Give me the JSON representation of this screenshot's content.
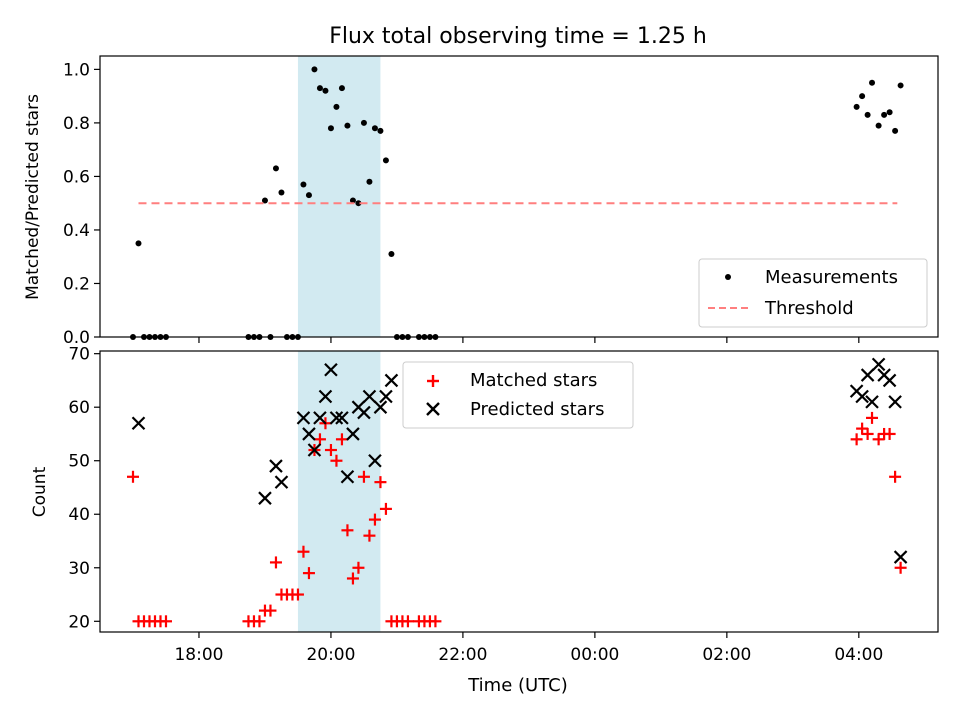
{
  "title": "Flux total observing time = 1.25 h",
  "xlabel": "Time (UTC)",
  "x_ticks": [
    "18:00",
    "20:00",
    "22:00",
    "00:00",
    "02:00",
    "04:00"
  ],
  "highlight": {
    "start": "19:30",
    "end": "20:45",
    "color": "#add8e6"
  },
  "chart_data": [
    {
      "type": "scatter",
      "ylabel": "Matched/Predicted stars",
      "xlim": [
        "16:30",
        "05:12"
      ],
      "ylim": [
        0,
        1.05
      ],
      "y_ticks": [
        "0.0",
        "0.2",
        "0.4",
        "0.6",
        "0.8",
        "1.0"
      ],
      "legend_position": "lower-right",
      "series": [
        {
          "name": "Measurements",
          "marker": "dot",
          "color": "#000000",
          "points": [
            [
              "17:00",
              0
            ],
            [
              "17:05",
              0.35
            ],
            [
              "17:10",
              0
            ],
            [
              "17:15",
              0
            ],
            [
              "17:20",
              0
            ],
            [
              "17:25",
              0
            ],
            [
              "17:30",
              0
            ],
            [
              "18:45",
              0
            ],
            [
              "18:50",
              0
            ],
            [
              "18:55",
              0
            ],
            [
              "19:00",
              0.51
            ],
            [
              "19:05",
              0
            ],
            [
              "19:10",
              0.63
            ],
            [
              "19:15",
              0.54
            ],
            [
              "19:20",
              0
            ],
            [
              "19:25",
              0
            ],
            [
              "19:30",
              0
            ],
            [
              "19:35",
              0.57
            ],
            [
              "19:40",
              0.53
            ],
            [
              "19:45",
              1.0
            ],
            [
              "19:50",
              0.93
            ],
            [
              "19:55",
              0.92
            ],
            [
              "20:00",
              0.78
            ],
            [
              "20:05",
              0.86
            ],
            [
              "20:10",
              0.93
            ],
            [
              "20:15",
              0.79
            ],
            [
              "20:20",
              0.51
            ],
            [
              "20:25",
              0.5
            ],
            [
              "20:30",
              0.8
            ],
            [
              "20:35",
              0.58
            ],
            [
              "20:40",
              0.78
            ],
            [
              "20:45",
              0.77
            ],
            [
              "20:50",
              0.66
            ],
            [
              "20:55",
              0.31
            ],
            [
              "21:00",
              0
            ],
            [
              "21:05",
              0
            ],
            [
              "21:10",
              0
            ],
            [
              "21:20",
              0
            ],
            [
              "21:25",
              0
            ],
            [
              "21:30",
              0
            ],
            [
              "21:35",
              0
            ],
            [
              "03:58",
              0.86
            ],
            [
              "04:03",
              0.9
            ],
            [
              "04:08",
              0.83
            ],
            [
              "04:12",
              0.95
            ],
            [
              "04:18",
              0.79
            ],
            [
              "04:23",
              0.83
            ],
            [
              "04:28",
              0.84
            ],
            [
              "04:33",
              0.77
            ],
            [
              "04:38",
              0.94
            ]
          ]
        },
        {
          "name": "Threshold",
          "marker": "dashed-line",
          "color": "#ff7f7f",
          "points": [
            [
              "17:05",
              0.5
            ],
            [
              "04:35",
              0.5
            ]
          ]
        }
      ]
    },
    {
      "type": "scatter",
      "ylabel": "Count",
      "xlim": [
        "16:30",
        "05:12"
      ],
      "ylim": [
        18,
        70.5
      ],
      "y_ticks": [
        "20",
        "30",
        "40",
        "50",
        "60",
        "70"
      ],
      "legend_position": "top-center",
      "series": [
        {
          "name": "Matched stars",
          "marker": "plus",
          "color": "#ff0000",
          "points": [
            [
              "17:00",
              47
            ],
            [
              "17:05",
              20
            ],
            [
              "17:10",
              20
            ],
            [
              "17:15",
              20
            ],
            [
              "17:20",
              20
            ],
            [
              "17:25",
              20
            ],
            [
              "17:30",
              20
            ],
            [
              "18:45",
              20
            ],
            [
              "18:50",
              20
            ],
            [
              "18:55",
              20
            ],
            [
              "19:00",
              22
            ],
            [
              "19:05",
              22
            ],
            [
              "19:10",
              31
            ],
            [
              "19:15",
              25
            ],
            [
              "19:20",
              25
            ],
            [
              "19:25",
              25
            ],
            [
              "19:30",
              25
            ],
            [
              "19:35",
              33
            ],
            [
              "19:40",
              29
            ],
            [
              "19:45",
              52
            ],
            [
              "19:50",
              54
            ],
            [
              "19:55",
              57
            ],
            [
              "20:00",
              52
            ],
            [
              "20:05",
              50
            ],
            [
              "20:10",
              54
            ],
            [
              "20:15",
              37
            ],
            [
              "20:20",
              28
            ],
            [
              "20:25",
              30
            ],
            [
              "20:30",
              47
            ],
            [
              "20:35",
              36
            ],
            [
              "20:40",
              39
            ],
            [
              "20:45",
              46
            ],
            [
              "20:50",
              41
            ],
            [
              "20:55",
              20
            ],
            [
              "21:00",
              20
            ],
            [
              "21:05",
              20
            ],
            [
              "21:10",
              20
            ],
            [
              "21:20",
              20
            ],
            [
              "21:25",
              20
            ],
            [
              "21:30",
              20
            ],
            [
              "21:35",
              20
            ],
            [
              "03:58",
              54
            ],
            [
              "04:03",
              56
            ],
            [
              "04:08",
              55
            ],
            [
              "04:12",
              58
            ],
            [
              "04:18",
              54
            ],
            [
              "04:23",
              55
            ],
            [
              "04:28",
              55
            ],
            [
              "04:33",
              47
            ],
            [
              "04:38",
              30
            ]
          ]
        },
        {
          "name": "Predicted stars",
          "marker": "x",
          "color": "#000000",
          "points": [
            [
              "17:05",
              57
            ],
            [
              "19:00",
              43
            ],
            [
              "19:10",
              49
            ],
            [
              "19:15",
              46
            ],
            [
              "19:35",
              58
            ],
            [
              "19:40",
              55
            ],
            [
              "19:45",
              52
            ],
            [
              "19:50",
              58
            ],
            [
              "19:55",
              62
            ],
            [
              "20:00",
              67
            ],
            [
              "20:05",
              58
            ],
            [
              "20:10",
              58
            ],
            [
              "20:15",
              47
            ],
            [
              "20:20",
              55
            ],
            [
              "20:25",
              60
            ],
            [
              "20:30",
              59
            ],
            [
              "20:35",
              62
            ],
            [
              "20:40",
              50
            ],
            [
              "20:45",
              60
            ],
            [
              "20:50",
              62
            ],
            [
              "20:55",
              65
            ],
            [
              "03:58",
              63
            ],
            [
              "04:03",
              62
            ],
            [
              "04:08",
              66
            ],
            [
              "04:12",
              61
            ],
            [
              "04:18",
              68
            ],
            [
              "04:23",
              66
            ],
            [
              "04:28",
              65
            ],
            [
              "04:33",
              61
            ],
            [
              "04:38",
              32
            ]
          ]
        }
      ]
    }
  ]
}
